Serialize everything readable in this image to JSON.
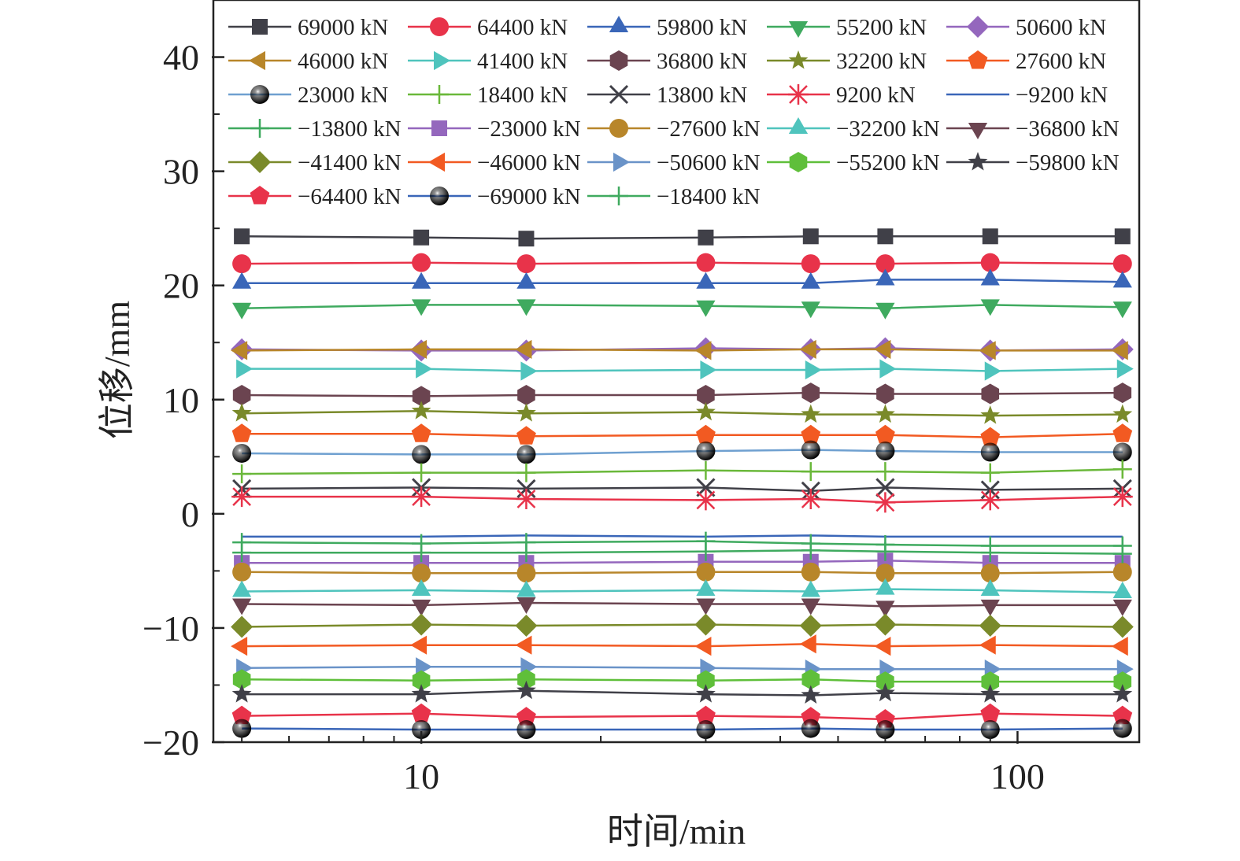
{
  "chart_data": {
    "type": "line",
    "xlabel": "时间/min",
    "ylabel": "位移/mm",
    "xscale": "log",
    "xlim": [
      4.48,
      160
    ],
    "ylim": [
      -20,
      45
    ],
    "x_ticks": [
      10,
      100
    ],
    "x_tick_labels": [
      "10",
      "100"
    ],
    "y_ticks": [
      -20,
      -10,
      0,
      10,
      20,
      30,
      40
    ],
    "y_tick_labels": [
      "−20",
      "−10",
      "0",
      "10",
      "20",
      "30",
      "40"
    ],
    "grid": false,
    "legend_position": "top",
    "x": [
      5,
      10,
      15,
      30,
      45,
      60,
      90,
      150
    ],
    "series": [
      {
        "name": "69000 kN",
        "color": "#404048",
        "marker": "square",
        "values": [
          24.3,
          24.2,
          24.1,
          24.2,
          24.3,
          24.3,
          24.3,
          24.3
        ]
      },
      {
        "name": "64400 kN",
        "color": "#e8334a",
        "marker": "circle",
        "values": [
          21.9,
          22.0,
          21.9,
          22.0,
          21.9,
          21.9,
          22.0,
          21.9
        ]
      },
      {
        "name": "59800 kN",
        "color": "#3a66b8",
        "marker": "triangle-up",
        "values": [
          20.2,
          20.2,
          20.2,
          20.2,
          20.2,
          20.5,
          20.5,
          20.3
        ]
      },
      {
        "name": "55200 kN",
        "color": "#3faa5f",
        "marker": "triangle-down",
        "values": [
          18.0,
          18.3,
          18.3,
          18.2,
          18.1,
          18.0,
          18.3,
          18.1
        ]
      },
      {
        "name": "50600 kN",
        "color": "#9467bd",
        "marker": "diamond",
        "values": [
          14.4,
          14.3,
          14.3,
          14.5,
          14.4,
          14.5,
          14.3,
          14.4
        ]
      },
      {
        "name": "46000 kN",
        "color": "#b8862a",
        "marker": "triangle-left",
        "values": [
          14.3,
          14.4,
          14.4,
          14.3,
          14.4,
          14.4,
          14.3,
          14.3
        ]
      },
      {
        "name": "41400 kN",
        "color": "#4fc4bd",
        "marker": "triangle-right",
        "values": [
          12.7,
          12.7,
          12.5,
          12.6,
          12.6,
          12.7,
          12.5,
          12.7
        ]
      },
      {
        "name": "36800 kN",
        "color": "#6b4450",
        "marker": "hexagon",
        "values": [
          10.4,
          10.3,
          10.4,
          10.4,
          10.6,
          10.5,
          10.5,
          10.6
        ]
      },
      {
        "name": "32200 kN",
        "color": "#7a8a2a",
        "marker": "star",
        "values": [
          8.8,
          9.0,
          8.8,
          8.9,
          8.7,
          8.7,
          8.6,
          8.7
        ]
      },
      {
        "name": "27600 kN",
        "color": "#f25a22",
        "marker": "pentagon",
        "values": [
          7.0,
          7.0,
          6.8,
          6.9,
          6.9,
          6.9,
          6.7,
          7.0
        ]
      },
      {
        "name": "23000 kN",
        "color": "#6fa0d0",
        "marker": "sphere",
        "values": [
          5.3,
          5.2,
          5.2,
          5.5,
          5.6,
          5.5,
          5.4,
          5.4
        ]
      },
      {
        "name": "18400 kN",
        "color": "#6ab83a",
        "marker": "plus",
        "values": [
          3.5,
          3.6,
          3.6,
          3.8,
          3.7,
          3.7,
          3.6,
          3.9
        ]
      },
      {
        "name": "13800 kN",
        "color": "#404048",
        "marker": "x",
        "values": [
          2.2,
          2.3,
          2.2,
          2.3,
          2.0,
          2.3,
          2.1,
          2.2
        ]
      },
      {
        "name": "9200 kN",
        "color": "#e8334a",
        "marker": "asterisk",
        "values": [
          1.5,
          1.5,
          1.3,
          1.2,
          1.3,
          1.0,
          1.2,
          1.5
        ]
      },
      {
        "name": "−9200 kN",
        "color": "#3a66b8",
        "marker": "none",
        "values": [
          -2.0,
          -2.0,
          -1.9,
          -2.0,
          -1.9,
          -2.0,
          -2.0,
          -2.0
        ]
      },
      {
        "name": "−13800 kN",
        "color": "#3faa5f",
        "marker": "plus",
        "values": [
          -2.5,
          -2.6,
          -2.5,
          -2.4,
          -2.6,
          -2.7,
          -2.8,
          -2.8
        ]
      },
      {
        "name": "−23000 kN",
        "color": "#9467bd",
        "marker": "square",
        "values": [
          -4.3,
          -4.3,
          -4.3,
          -4.2,
          -4.2,
          -4.1,
          -4.3,
          -4.3
        ]
      },
      {
        "name": "−27600 kN",
        "color": "#b8862a",
        "marker": "circle",
        "values": [
          -5.1,
          -5.2,
          -5.2,
          -5.1,
          -5.1,
          -5.2,
          -5.2,
          -5.1
        ]
      },
      {
        "name": "−32200 kN",
        "color": "#4fc4bd",
        "marker": "triangle-up",
        "values": [
          -6.8,
          -6.7,
          -6.8,
          -6.7,
          -6.8,
          -6.6,
          -6.7,
          -6.9
        ]
      },
      {
        "name": "−36800 kN",
        "color": "#6b4450",
        "marker": "triangle-down",
        "values": [
          -7.9,
          -8.0,
          -7.8,
          -7.9,
          -7.9,
          -8.1,
          -8.0,
          -8.0
        ]
      },
      {
        "name": "−41400 kN",
        "color": "#7a8a2a",
        "marker": "diamond",
        "values": [
          -9.9,
          -9.7,
          -9.8,
          -9.7,
          -9.8,
          -9.7,
          -9.8,
          -9.9
        ]
      },
      {
        "name": "−46000 kN",
        "color": "#f25a22",
        "marker": "triangle-left",
        "values": [
          -11.6,
          -11.5,
          -11.5,
          -11.6,
          -11.4,
          -11.6,
          -11.5,
          -11.6
        ]
      },
      {
        "name": "−50600 kN",
        "color": "#6a93c8",
        "marker": "triangle-right",
        "values": [
          -13.5,
          -13.4,
          -13.4,
          -13.5,
          -13.6,
          -13.6,
          -13.6,
          -13.6
        ]
      },
      {
        "name": "−55200 kN",
        "color": "#5fbf3a",
        "marker": "hexagon",
        "values": [
          -14.5,
          -14.6,
          -14.5,
          -14.6,
          -14.5,
          -14.7,
          -14.7,
          -14.7
        ]
      },
      {
        "name": "−59800 kN",
        "color": "#404048",
        "marker": "star",
        "values": [
          -15.8,
          -15.8,
          -15.5,
          -15.8,
          -15.9,
          -15.7,
          -15.8,
          -15.8
        ]
      },
      {
        "name": "−64400 kN",
        "color": "#e8334a",
        "marker": "pentagon",
        "values": [
          -17.7,
          -17.5,
          -17.8,
          -17.7,
          -17.8,
          -18.0,
          -17.5,
          -17.7
        ]
      },
      {
        "name": "−69000 kN",
        "color": "#3a66b8",
        "marker": "sphere",
        "values": [
          -18.8,
          -18.9,
          -18.9,
          -18.9,
          -18.8,
          -18.9,
          -18.9,
          -18.8
        ]
      },
      {
        "name": "−18400 kN",
        "color": "#3faa5f",
        "marker": "plus",
        "values": [
          -3.4,
          -3.4,
          -3.4,
          -3.3,
          -3.2,
          -3.3,
          -3.4,
          -3.5
        ]
      }
    ]
  }
}
